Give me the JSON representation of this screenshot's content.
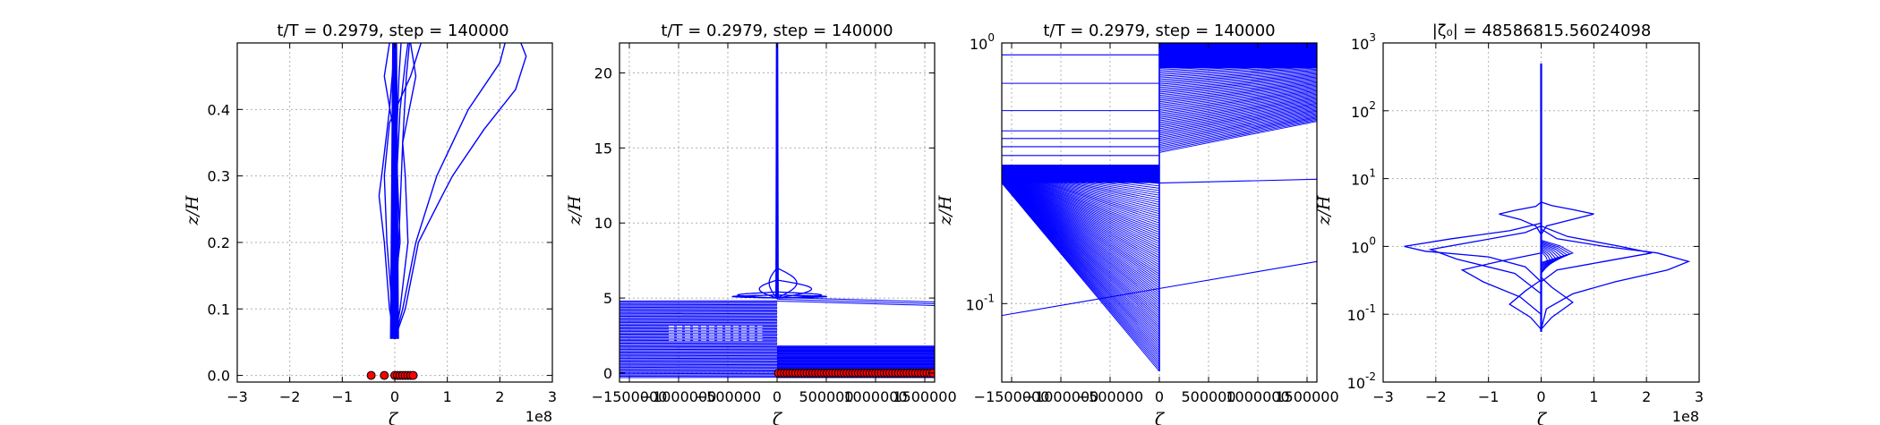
{
  "panels": [
    {
      "id": "p1",
      "title": "t/T = 0.2979, step = 140000",
      "xlabel": "ζ",
      "ylabel": "z/H",
      "xoffset": "1e8",
      "xlim": [
        -3,
        3
      ],
      "ylim": [
        -0.01,
        0.5
      ],
      "yscale": "linear",
      "xticks": [
        -3,
        -2,
        -1,
        0,
        1,
        2,
        3
      ],
      "xticklabels": [
        "−3",
        "−2",
        "−1",
        "0",
        "1",
        "2",
        "3"
      ],
      "yticks": [
        0.0,
        0.1,
        0.2,
        0.3,
        0.4
      ],
      "yticklabels": [
        "0.0",
        "0.1",
        "0.2",
        "0.3",
        "0.4"
      ],
      "grid": true
    },
    {
      "id": "p2",
      "title": "t/T = 0.2979, step = 140000",
      "xlabel": "ζ",
      "ylabel": "z/H",
      "xlim": [
        -1600000,
        1600000
      ],
      "ylim": [
        -0.6,
        22
      ],
      "yscale": "linear",
      "xticks": [
        -1500000,
        -1000000,
        -500000,
        0,
        500000,
        1000000,
        1500000
      ],
      "xticklabels": [
        "−1500000",
        "−1000000",
        "−500000",
        "0",
        "500000",
        "1000000",
        "1500000"
      ],
      "yticks": [
        0,
        5,
        10,
        15,
        20
      ],
      "yticklabels": [
        "0",
        "5",
        "10",
        "15",
        "20"
      ],
      "grid": true
    },
    {
      "id": "p3",
      "title": "t/T = 0.2979, step = 140000",
      "xlabel": "ζ",
      "ylabel": "z/H",
      "xlim": [
        -1600000,
        1600000
      ],
      "ylim": [
        0.05,
        1.0
      ],
      "yscale": "log",
      "xticks": [
        -1500000,
        -1000000,
        -500000,
        0,
        500000,
        1000000,
        1500000
      ],
      "xticklabels": [
        "−1500000",
        "−1000000",
        "−500000",
        "0",
        "500000",
        "1000000",
        "1500000"
      ],
      "yticks": [
        0.1,
        1
      ],
      "yticklabels_base": [
        "10",
        "10"
      ],
      "yticklabels_exp": [
        "-1",
        "0"
      ],
      "grid": true
    },
    {
      "id": "p4",
      "title": "|ζ₀| = 48586815.56024098",
      "xlabel": "ζ",
      "ylabel": "z/H",
      "xoffset": "1e8",
      "xlim": [
        -3,
        3
      ],
      "ylim": [
        0.01,
        1000
      ],
      "yscale": "log",
      "xticks": [
        -3,
        -2,
        -1,
        0,
        1,
        2,
        3
      ],
      "xticklabels": [
        "−3",
        "−2",
        "−1",
        "0",
        "1",
        "2",
        "3"
      ],
      "yticks": [
        0.01,
        0.1,
        1,
        10,
        100,
        1000
      ],
      "yticklabels_base": [
        "10",
        "10",
        "10",
        "10",
        "10",
        "10"
      ],
      "yticklabels_exp": [
        "-2",
        "-1",
        "0",
        "1",
        "2",
        "3"
      ],
      "grid": true
    }
  ],
  "chart_data": [
    {
      "type": "line",
      "panel": "p1",
      "x_units": "1e8",
      "series": [
        {
          "x": [
            0.0,
            -0.1,
            -0.2,
            -0.3,
            -0.25,
            -0.1,
            0.0
          ],
          "y": [
            0.055,
            0.1,
            0.2,
            0.27,
            0.3,
            0.4,
            0.5
          ]
        },
        {
          "x": [
            0.0,
            0.2,
            0.45,
            0.9,
            1.1,
            1.7,
            2.3,
            2.5,
            2.4
          ],
          "y": [
            0.055,
            0.1,
            0.2,
            0.27,
            0.3,
            0.37,
            0.43,
            0.48,
            0.5
          ]
        },
        {
          "x": [
            0.0,
            0.15,
            0.4,
            0.8,
            1.4,
            2.0,
            2.1
          ],
          "y": [
            0.055,
            0.1,
            0.2,
            0.3,
            0.4,
            0.47,
            0.5
          ]
        },
        {
          "x": [
            0.0,
            -0.05,
            -0.15,
            -0.2,
            -0.1,
            0.3,
            0.5
          ],
          "y": [
            0.055,
            0.1,
            0.2,
            0.3,
            0.38,
            0.45,
            0.5
          ]
        },
        {
          "x": [
            0.0,
            0.1,
            0.25,
            0.2,
            0.15,
            0.4,
            0.3
          ],
          "y": [
            0.055,
            0.1,
            0.2,
            0.3,
            0.35,
            0.45,
            0.5
          ]
        },
        {
          "x": [
            0.0,
            -0.05,
            0.1,
            0.05,
            -0.05,
            -0.2,
            -0.1
          ],
          "y": [
            0.055,
            0.1,
            0.2,
            0.3,
            0.38,
            0.45,
            0.5
          ]
        },
        {
          "x": [
            0.0,
            0.02,
            -0.02,
            0.05,
            0.1,
            0.2,
            0.25
          ],
          "y": [
            0.055,
            0.12,
            0.22,
            0.32,
            0.4,
            0.47,
            0.5
          ]
        },
        {
          "x": [
            0.0,
            0.05,
            0.1,
            0.15,
            0.22,
            0.28
          ],
          "y": [
            0.055,
            0.15,
            0.25,
            0.35,
            0.45,
            0.5
          ]
        },
        {
          "x": [
            0.0,
            -0.03,
            -0.01,
            0.03,
            0.08,
            0.12
          ],
          "y": [
            0.055,
            0.15,
            0.25,
            0.35,
            0.45,
            0.5
          ]
        }
      ],
      "points": {
        "x": [
          -0.45,
          -0.2,
          0.0,
          0.05,
          0.1,
          0.15,
          0.2,
          0.25,
          0.3,
          0.35
        ],
        "y": [
          0,
          0,
          0,
          0,
          0,
          0,
          0,
          0,
          0,
          0
        ]
      }
    },
    {
      "type": "line",
      "panel": "p2",
      "spike": {
        "x": 0,
        "y_range": [
          5.0,
          22
        ]
      },
      "lobes": [
        {
          "xmin": -400000,
          "xmax": 450000,
          "ypeak": 5.4
        },
        {
          "xmin": -450000,
          "xmax": 500000,
          "ypeak": 5.2
        },
        {
          "xmin": -180000,
          "xmax": 350000,
          "ypeak": 6.2
        },
        {
          "xmin": -80000,
          "xmax": 200000,
          "ypeak": 7.0
        }
      ],
      "band_left": {
        "x": [
          -1600000,
          0
        ],
        "y_range": [
          -0.3,
          4.8
        ]
      },
      "band_right": {
        "x": [
          0,
          1600000
        ],
        "y_range": [
          -0.3,
          1.8
        ]
      },
      "points": {
        "x_range": [
          0,
          1600000
        ],
        "y": 0
      }
    },
    {
      "type": "line",
      "panel": "p3",
      "vertical": {
        "x": 0,
        "y_range": [
          0.055,
          1.0
        ]
      },
      "fan_left": {
        "x": [
          -1600000,
          0
        ],
        "y_range": [
          0.055,
          0.34
        ]
      },
      "fan_right": {
        "x": [
          0,
          1600000
        ],
        "y_range": [
          0.38,
          1.0
        ]
      },
      "cross_lines": [
        {
          "x": [
            -1600000,
            1600000
          ],
          "y": [
            0.09,
            0.145
          ]
        },
        {
          "x": [
            0,
            1600000
          ],
          "y": [
            0.29,
            0.3
          ]
        }
      ],
      "hlines_left": [
        0.37,
        0.4,
        0.43,
        0.46,
        0.55,
        0.7,
        0.9
      ]
    },
    {
      "type": "line",
      "panel": "p4",
      "x_units": "1e8",
      "spike": {
        "x": 0,
        "y_range": [
          0.055,
          500
        ]
      },
      "series": [
        {
          "x": [
            0,
            0.1,
            0.6,
            1.4,
            2.4,
            2.8,
            2.2,
            1.2,
            0.3,
            0
          ],
          "y": [
            0.06,
            0.12,
            0.2,
            0.3,
            0.45,
            0.6,
            0.8,
            1.0,
            1.3,
            1.8
          ]
        },
        {
          "x": [
            0,
            -0.3,
            -1.0,
            -2.2,
            -2.6,
            -1.7,
            -0.6,
            0
          ],
          "y": [
            0.3,
            0.5,
            0.7,
            0.85,
            1.0,
            1.3,
            1.7,
            2.2
          ]
        },
        {
          "x": [
            0,
            -0.5,
            -1.6,
            -2.1,
            -1.2,
            -0.3,
            0
          ],
          "y": [
            0.2,
            0.4,
            0.65,
            0.9,
            1.2,
            1.6,
            2.0
          ]
        },
        {
          "x": [
            0,
            0.3,
            1.2,
            2.1,
            1.5,
            0.5,
            0
          ],
          "y": [
            0.3,
            0.45,
            0.6,
            0.8,
            1.0,
            1.4,
            2.0
          ]
        },
        {
          "x": [
            0,
            0.1,
            0.5,
            1.0,
            0.6,
            0.2,
            0
          ],
          "y": [
            1.5,
            2.0,
            2.4,
            3.0,
            3.5,
            4.0,
            4.5
          ]
        },
        {
          "x": [
            0,
            -0.1,
            -0.4,
            -0.8,
            -0.5,
            -0.1,
            0
          ],
          "y": [
            1.5,
            2.0,
            2.5,
            3.0,
            3.4,
            3.9,
            4.5
          ]
        },
        {
          "x": [
            0,
            -0.4,
            -1.1,
            -1.5,
            -0.8,
            0
          ],
          "y": [
            0.1,
            0.18,
            0.3,
            0.45,
            0.6,
            0.8
          ]
        },
        {
          "x": [
            0,
            0.2,
            0.6,
            0.2,
            0
          ],
          "y": [
            0.06,
            0.09,
            0.15,
            0.25,
            0.35
          ]
        },
        {
          "x": [
            0,
            -0.2,
            -0.6,
            -0.3,
            0
          ],
          "y": [
            0.06,
            0.09,
            0.14,
            0.22,
            0.32
          ]
        }
      ]
    }
  ],
  "colors": {
    "line": "#0000ff",
    "marker": "#ff0000",
    "marker_edge": "#000000",
    "grid": "#b0b0b0",
    "axes": "#000000"
  }
}
